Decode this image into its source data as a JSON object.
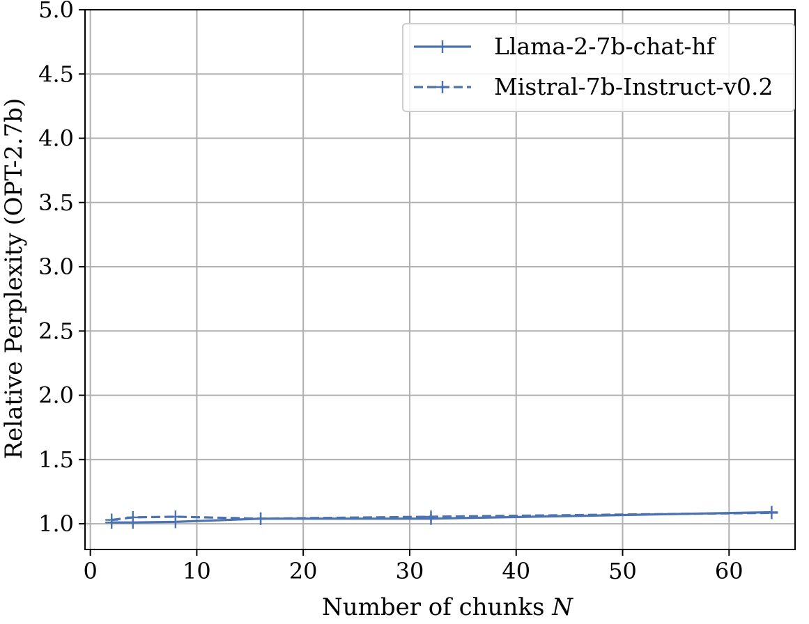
{
  "chart_data": {
    "type": "line",
    "title": "",
    "xlabel": "Number of chunks ",
    "xlabel_var": "N",
    "ylabel": "Relative Perplexity (OPT-2.7b)",
    "xlim": [
      -0.5,
      66.2
    ],
    "ylim": [
      0.8,
      5.0
    ],
    "xticks": [
      0,
      10,
      20,
      30,
      40,
      50,
      60
    ],
    "yticks": [
      1.0,
      1.5,
      2.0,
      2.5,
      3.0,
      3.5,
      4.0,
      4.5,
      5.0
    ],
    "ytick_labels": [
      "1.0",
      "1.5",
      "2.0",
      "2.5",
      "3.0",
      "3.5",
      "4.0",
      "4.5",
      "5.0"
    ],
    "grid": true,
    "legend_position": "top-right",
    "series": [
      {
        "name": "Llama-2-7b-chat-hf",
        "linestyle": "solid",
        "marker": "+",
        "color": "#4c72b0",
        "x": [
          2,
          4,
          8,
          16,
          32,
          64
        ],
        "y": [
          1.01,
          1.01,
          1.015,
          1.04,
          1.04,
          1.09
        ]
      },
      {
        "name": "Mistral-7b-Instruct-v0.2",
        "linestyle": "dashed",
        "marker": "+",
        "color": "#4c72b0",
        "x": [
          2,
          4,
          8,
          16,
          32,
          64
        ],
        "y": [
          1.03,
          1.05,
          1.055,
          1.04,
          1.055,
          1.085
        ]
      }
    ]
  }
}
